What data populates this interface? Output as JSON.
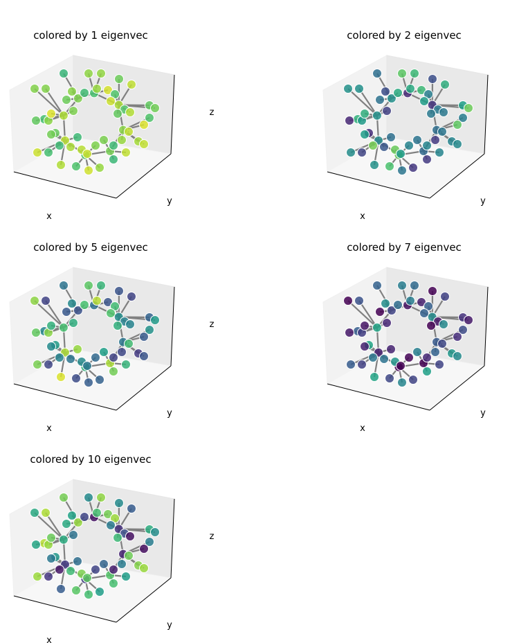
{
  "chart_data": [
    {
      "type": "scatter3d",
      "title": "colored by 1 eigenvec",
      "xlabel": "x",
      "ylabel": "y",
      "zlabel": "z",
      "grid": true,
      "colormap": "viridis",
      "eigenvector_index": 1
    },
    {
      "type": "scatter3d",
      "title": "colored by 2 eigenvec",
      "xlabel": "x",
      "ylabel": "y",
      "zlabel": "z",
      "grid": true,
      "colormap": "viridis",
      "eigenvector_index": 2
    },
    {
      "type": "scatter3d",
      "title": "colored by 5 eigenvec",
      "xlabel": "x",
      "ylabel": "y",
      "zlabel": "z",
      "grid": true,
      "colormap": "viridis",
      "eigenvector_index": 5
    },
    {
      "type": "scatter3d",
      "title": "colored by 7 eigenvec",
      "xlabel": "x",
      "ylabel": "y",
      "zlabel": "z",
      "grid": true,
      "colormap": "viridis",
      "eigenvector_index": 7
    },
    {
      "type": "scatter3d",
      "title": "colored by 10 eigenvec",
      "xlabel": "x",
      "ylabel": "y",
      "zlabel": "z",
      "grid": true,
      "colormap": "viridis",
      "eigenvector_index": 10
    }
  ],
  "colors": {
    "edge": "#808080",
    "pane_left": "#f2f2f2",
    "pane_right": "#e9e9e9",
    "pane_floor": "#f7f7f7",
    "viridis": [
      "#440154",
      "#46327e",
      "#365c8d",
      "#277f8e",
      "#1fa187",
      "#4ac16d",
      "#a0da39",
      "#fde725"
    ]
  }
}
